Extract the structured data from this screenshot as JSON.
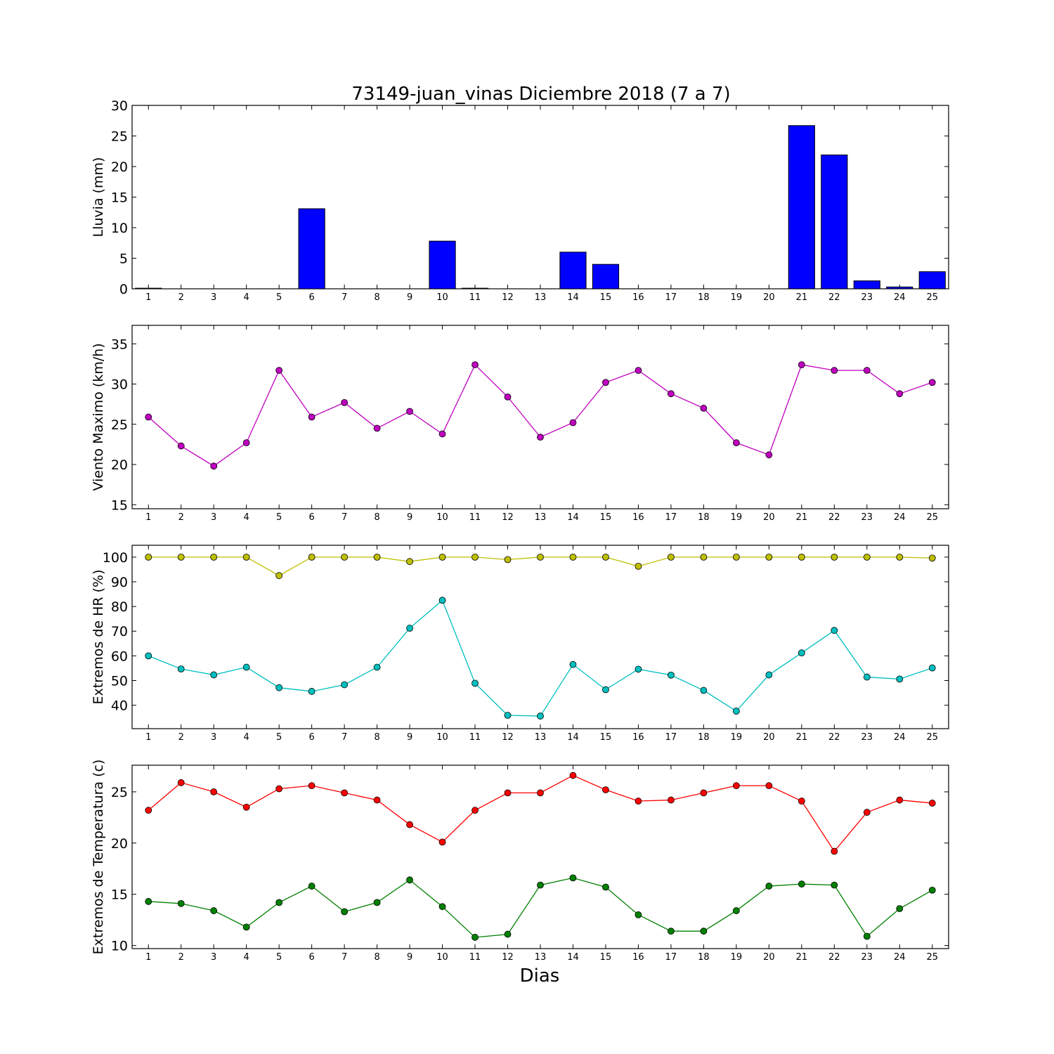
{
  "chart_data": {
    "title": "73149-juan_vinas Diciembre 2018  (7 a 7)",
    "xlabel": "Dias",
    "days": [
      "1",
      "2",
      "3",
      "4",
      "5",
      "6",
      "7",
      "8",
      "9",
      "10",
      "11",
      "12",
      "13",
      "14",
      "15",
      "16",
      "17",
      "18",
      "19",
      "20",
      "21",
      "22",
      "23",
      "24",
      "25"
    ],
    "panels": [
      {
        "type": "bar",
        "ylabel": "Lluvia (mm)",
        "ylim": [
          0,
          30
        ],
        "yticks": [
          "0",
          "5",
          "10",
          "15",
          "20",
          "25",
          "30"
        ],
        "series": [
          {
            "color": "#0000ff",
            "values": [
              0.1,
              0,
              0,
              0,
              0,
              13.1,
              0,
              0,
              0,
              7.8,
              0.1,
              0,
              0,
              6.0,
              4.0,
              0,
              0,
              0,
              0,
              0,
              26.7,
              21.9,
              1.3,
              0.3,
              2.8
            ]
          }
        ]
      },
      {
        "type": "line",
        "ylabel": "Viento Maximo (km/h)",
        "ylim": [
          14.5,
          37.3
        ],
        "yticks": [
          "15",
          "20",
          "25",
          "30",
          "35"
        ],
        "series": [
          {
            "color": "#bf00bf",
            "values": [
              25.9,
              22.3,
              19.8,
              22.7,
              31.7,
              25.9,
              27.7,
              24.5,
              26.6,
              23.8,
              32.4,
              28.4,
              23.4,
              25.2,
              30.2,
              31.7,
              28.8,
              27.0,
              22.7,
              21.2,
              32.4,
              31.7,
              31.7,
              28.8,
              30.2
            ]
          }
        ]
      },
      {
        "type": "line",
        "ylabel": "Extremos de HR (%)",
        "ylim": [
          30.5,
          104.8
        ],
        "yticks": [
          "40",
          "50",
          "60",
          "70",
          "80",
          "90",
          "100"
        ],
        "series": [
          {
            "color": "#bfbf00",
            "values": [
              100,
              100,
              100,
              100,
              92.5,
              100,
              100,
              100,
              98.2,
              100,
              100,
              99.0,
              100,
              100,
              100,
              96.3,
              100,
              100,
              100,
              100,
              100,
              100,
              100,
              100,
              99.6
            ]
          },
          {
            "color": "#00bfbf",
            "values": [
              60.0,
              54.7,
              52.3,
              55.4,
              47.1,
              45.6,
              48.3,
              55.4,
              71.2,
              82.5,
              48.9,
              35.9,
              35.6,
              56.5,
              46.3,
              54.6,
              52.2,
              46.0,
              37.6,
              52.3,
              61.2,
              70.3,
              51.4,
              50.6,
              55.1
            ]
          }
        ]
      },
      {
        "type": "line",
        "ylabel": "Extremos de Temperatura (c)",
        "ylim": [
          9.7,
          27.6
        ],
        "yticks": [
          "10",
          "15",
          "20",
          "25"
        ],
        "series": [
          {
            "color": "#ff0000",
            "values": [
              23.2,
              25.9,
              25.0,
              23.5,
              25.3,
              25.6,
              24.9,
              24.2,
              21.8,
              20.1,
              23.2,
              24.9,
              24.9,
              26.6,
              25.2,
              24.1,
              24.2,
              24.9,
              25.6,
              25.6,
              24.1,
              19.2,
              23.0,
              24.2,
              23.9
            ]
          },
          {
            "color": "#008000",
            "values": [
              14.3,
              14.1,
              13.4,
              11.8,
              14.2,
              15.8,
              13.3,
              14.2,
              16.4,
              13.8,
              10.8,
              11.1,
              15.9,
              16.6,
              15.7,
              13.0,
              11.4,
              11.4,
              13.4,
              15.8,
              16.0,
              15.9,
              10.9,
              13.6,
              15.4
            ]
          }
        ]
      }
    ]
  }
}
